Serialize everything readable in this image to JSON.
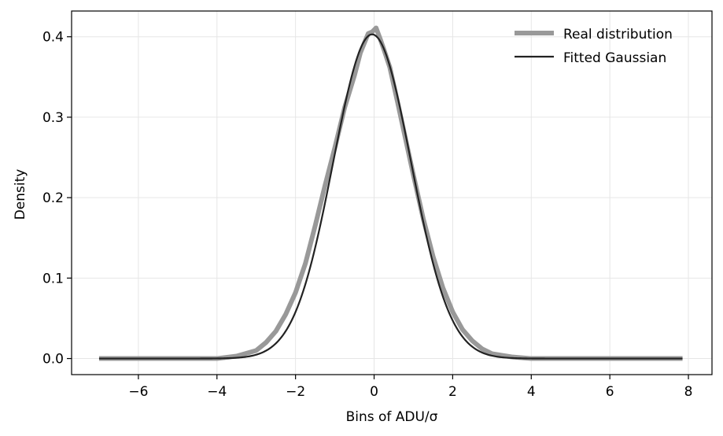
{
  "chart_data": {
    "type": "line",
    "xlabel": "Bins of ADU/σ",
    "ylabel": "Density",
    "xlim": [
      -7.7,
      8.6
    ],
    "ylim": [
      -0.02,
      0.432
    ],
    "xticks": [
      -6,
      -4,
      -2,
      0,
      2,
      4,
      6,
      8
    ],
    "xtick_labels": [
      "−6",
      "−4",
      "−2",
      "0",
      "2",
      "4",
      "6",
      "8"
    ],
    "yticks": [
      0.0,
      0.1,
      0.2,
      0.3,
      0.4
    ],
    "ytick_labels": [
      "0.0",
      "0.1",
      "0.2",
      "0.3",
      "0.4"
    ],
    "grid": true,
    "legend_position": "top-right",
    "series": [
      {
        "name": "Real distribution",
        "style": "thick-step",
        "color": "#999999",
        "x": [
          -7.0,
          -4.0,
          -3.5,
          -3.0,
          -2.75,
          -2.5,
          -2.25,
          -2.0,
          -1.75,
          -1.5,
          -1.25,
          -1.0,
          -0.75,
          -0.5,
          -0.35,
          -0.25,
          -0.15,
          -0.05,
          0.05,
          0.15,
          0.25,
          0.4,
          0.6,
          0.8,
          1.0,
          1.25,
          1.5,
          1.75,
          2.0,
          2.25,
          2.5,
          2.75,
          3.0,
          3.5,
          4.0,
          7.85
        ],
        "y": [
          0.0,
          0.0,
          0.003,
          0.01,
          0.02,
          0.034,
          0.055,
          0.082,
          0.118,
          0.165,
          0.215,
          0.262,
          0.312,
          0.352,
          0.38,
          0.392,
          0.404,
          0.406,
          0.411,
          0.398,
          0.384,
          0.362,
          0.318,
          0.273,
          0.228,
          0.174,
          0.127,
          0.088,
          0.058,
          0.036,
          0.022,
          0.012,
          0.006,
          0.002,
          0.0,
          0.0
        ]
      },
      {
        "name": "Fitted Gaussian",
        "style": "line",
        "color": "#222222",
        "mean": -0.05,
        "sigma": 0.99,
        "x_range": [
          -7.0,
          7.85
        ]
      }
    ]
  }
}
